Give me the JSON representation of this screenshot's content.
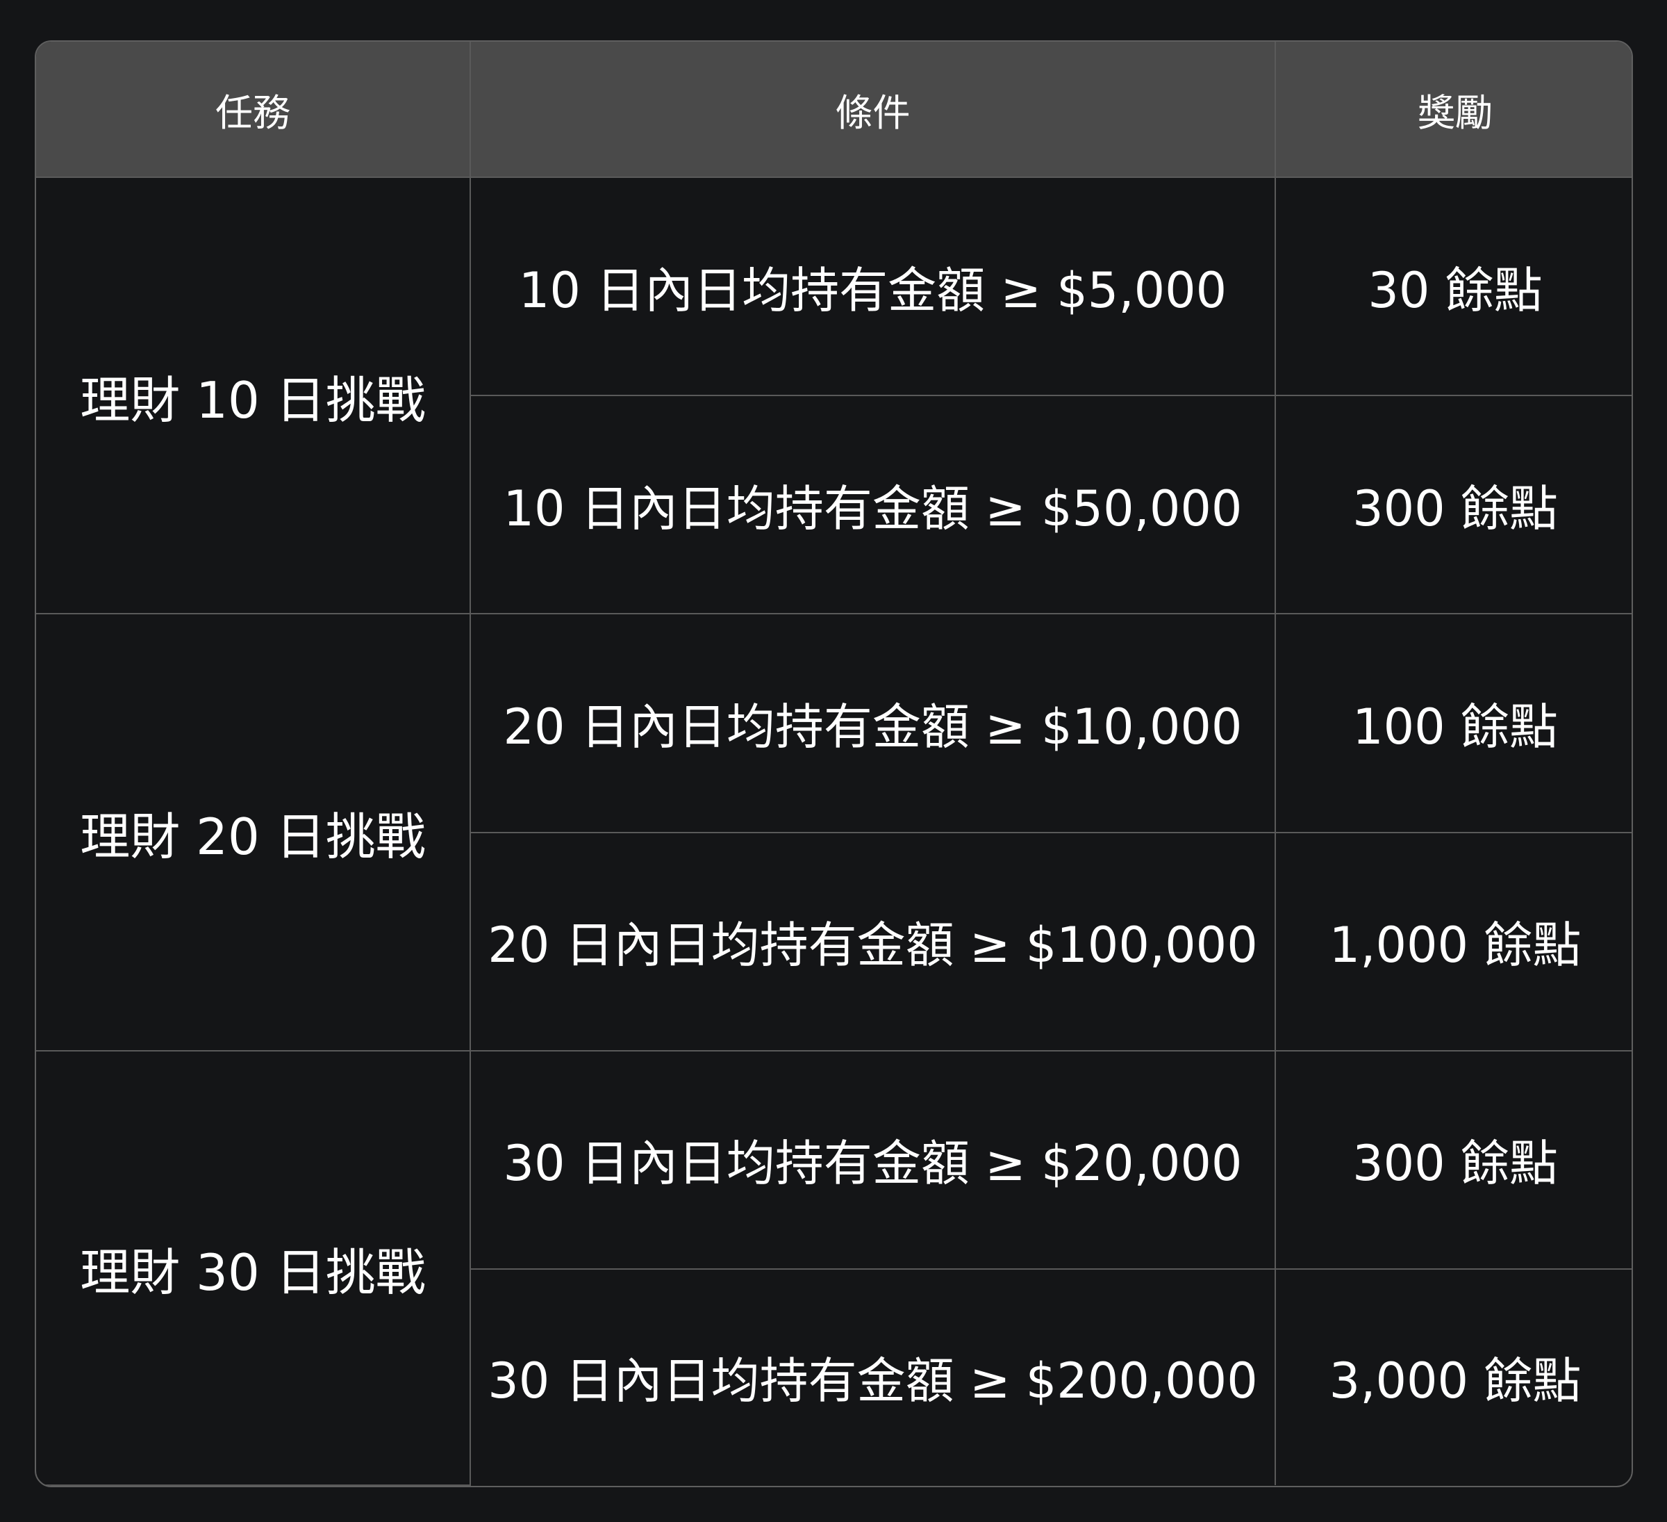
{
  "colors": {
    "background": "#141517",
    "header": "#4a4a4a",
    "border": "#5a5a5a",
    "text": "#ffffff"
  },
  "table": {
    "headers": [
      "任務",
      "條件",
      "獎勵"
    ],
    "groups": [
      {
        "task": "理財 10 日挑戰",
        "rows": [
          {
            "condition": "10 日內日均持有金額 ≥ $5,000",
            "reward": "30 餘點"
          },
          {
            "condition": "10 日內日均持有金額 ≥ $50,000",
            "reward": "300 餘點"
          }
        ]
      },
      {
        "task": "理財 20 日挑戰",
        "rows": [
          {
            "condition": "20 日內日均持有金額 ≥ $10,000",
            "reward": "100 餘點"
          },
          {
            "condition": "20 日內日均持有金額 ≥ $100,000",
            "reward": "1,000 餘點"
          }
        ]
      },
      {
        "task": "理財 30 日挑戰",
        "rows": [
          {
            "condition": "30 日內日均持有金額 ≥ $20,000",
            "reward": "300 餘點"
          },
          {
            "condition": "30 日內日均持有金額 ≥ $200,000",
            "reward": "3,000 餘點"
          }
        ]
      }
    ]
  }
}
